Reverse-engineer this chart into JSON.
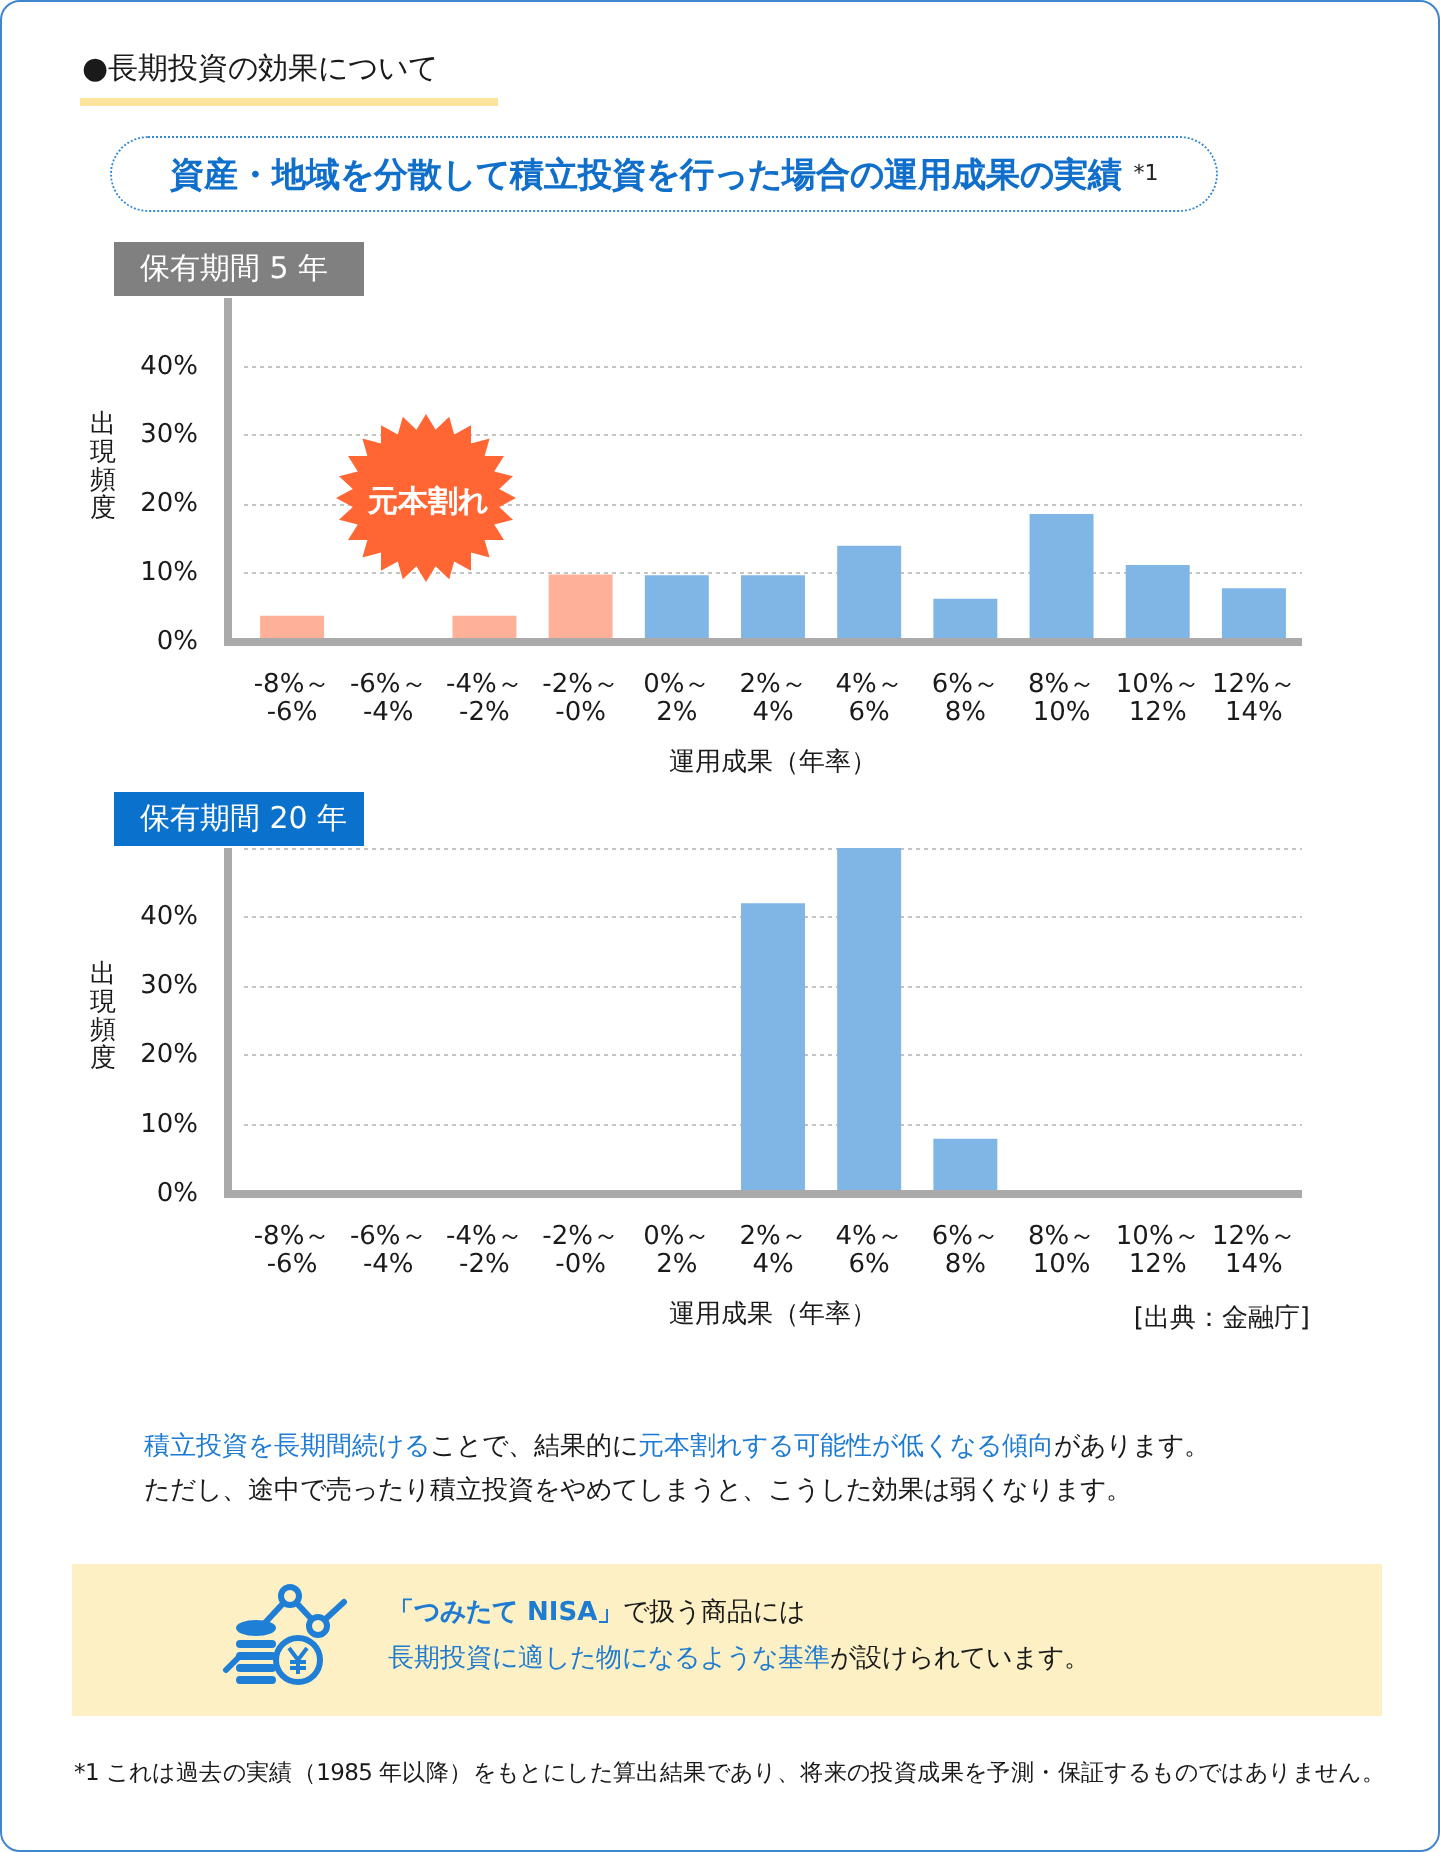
{
  "chart_data": [
    {
      "type": "bar",
      "title": "保有期間 5 年",
      "xlabel": "運用成果（年率）",
      "ylabel": "出現頻度",
      "annotations": [
        "●長期投資の効果について",
        "資産・地域を分散して積立投資を行った場合の運用成果の実績 $^{*1}$",
        "元本割れ"
      ],
      "categories": [
        "-8%～-6%",
        "-6%～-4%",
        "-4%～-2%",
        "-2%～-0%",
        "0%～2%",
        "2%～4%",
        "4%～6%",
        "6%～8%",
        "8%～10%",
        "10%～12%",
        "12%～14%"
      ],
      "values": [
        3.8,
        0,
        3.8,
        9.8,
        9.7,
        9.7,
        14,
        6.3,
        18.6,
        11.2,
        7.8
      ],
      "colors": [
        "#ffb098",
        "#ffb098",
        "#ffb098",
        "#ffb098",
        "#7fb6e6",
        "#7fb6e6",
        "#7fb6e6",
        "#7fb6e6",
        "#7fb6e6",
        "#7fb6e6",
        "#7fb6e6"
      ],
      "ylim": [
        0,
        50
      ],
      "yticks": [
        {
          "value": 0,
          "label": "0%"
        },
        {
          "value": 10,
          "label": "10%"
        },
        {
          "value": 20,
          "label": "20%"
        },
        {
          "value": 30,
          "label": "30%"
        },
        {
          "value": 40,
          "label": "40%"
        }
      ],
      "grid": "y"
    },
    {
      "type": "bar",
      "title": "保有期間 20 年",
      "xlabel": "運用成果（年率）",
      "ylabel": "出現頻度",
      "annotations": [
        "[出典：金融庁]",
        "積立投資を長期間続ける",
        "ことで、結果的に",
        "元本割れする可能性が低くなる傾向",
        "があります。",
        "ただし、途中で売ったり積立投資をやめてしまうと、こうした効果は弱くなります。",
        "「つみたて NISA」",
        "で扱う商品には",
        "長期投資に適した物になるような基準",
        "が設けられています。",
        "*1 これは過去の実績（1985 年以降）をもとにした算出結果であり、将来の投資成果を予測・保証するものではありません。"
      ],
      "categories": [
        "-8%～-6%",
        "-6%～-4%",
        "-4%～-2%",
        "-2%～-0%",
        "0%～2%",
        "2%～4%",
        "4%～6%",
        "6%～8%",
        "8%～10%",
        "10%～12%",
        "12%～14%"
      ],
      "values": [
        0,
        0,
        0,
        0,
        0,
        42,
        50,
        8,
        0,
        0,
        0
      ],
      "color": "#7fb6e6",
      "ylim": [
        0,
        50
      ],
      "yticks": [
        {
          "value": 0,
          "label": "0%"
        },
        {
          "value": 10,
          "label": "10%"
        },
        {
          "value": 20,
          "label": "20%"
        },
        {
          "value": 30,
          "label": "30%"
        },
        {
          "value": 40,
          "label": "40%"
        },
        {
          "value": 50,
          "label": null
        }
      ],
      "grid": "y"
    }
  ]
}
